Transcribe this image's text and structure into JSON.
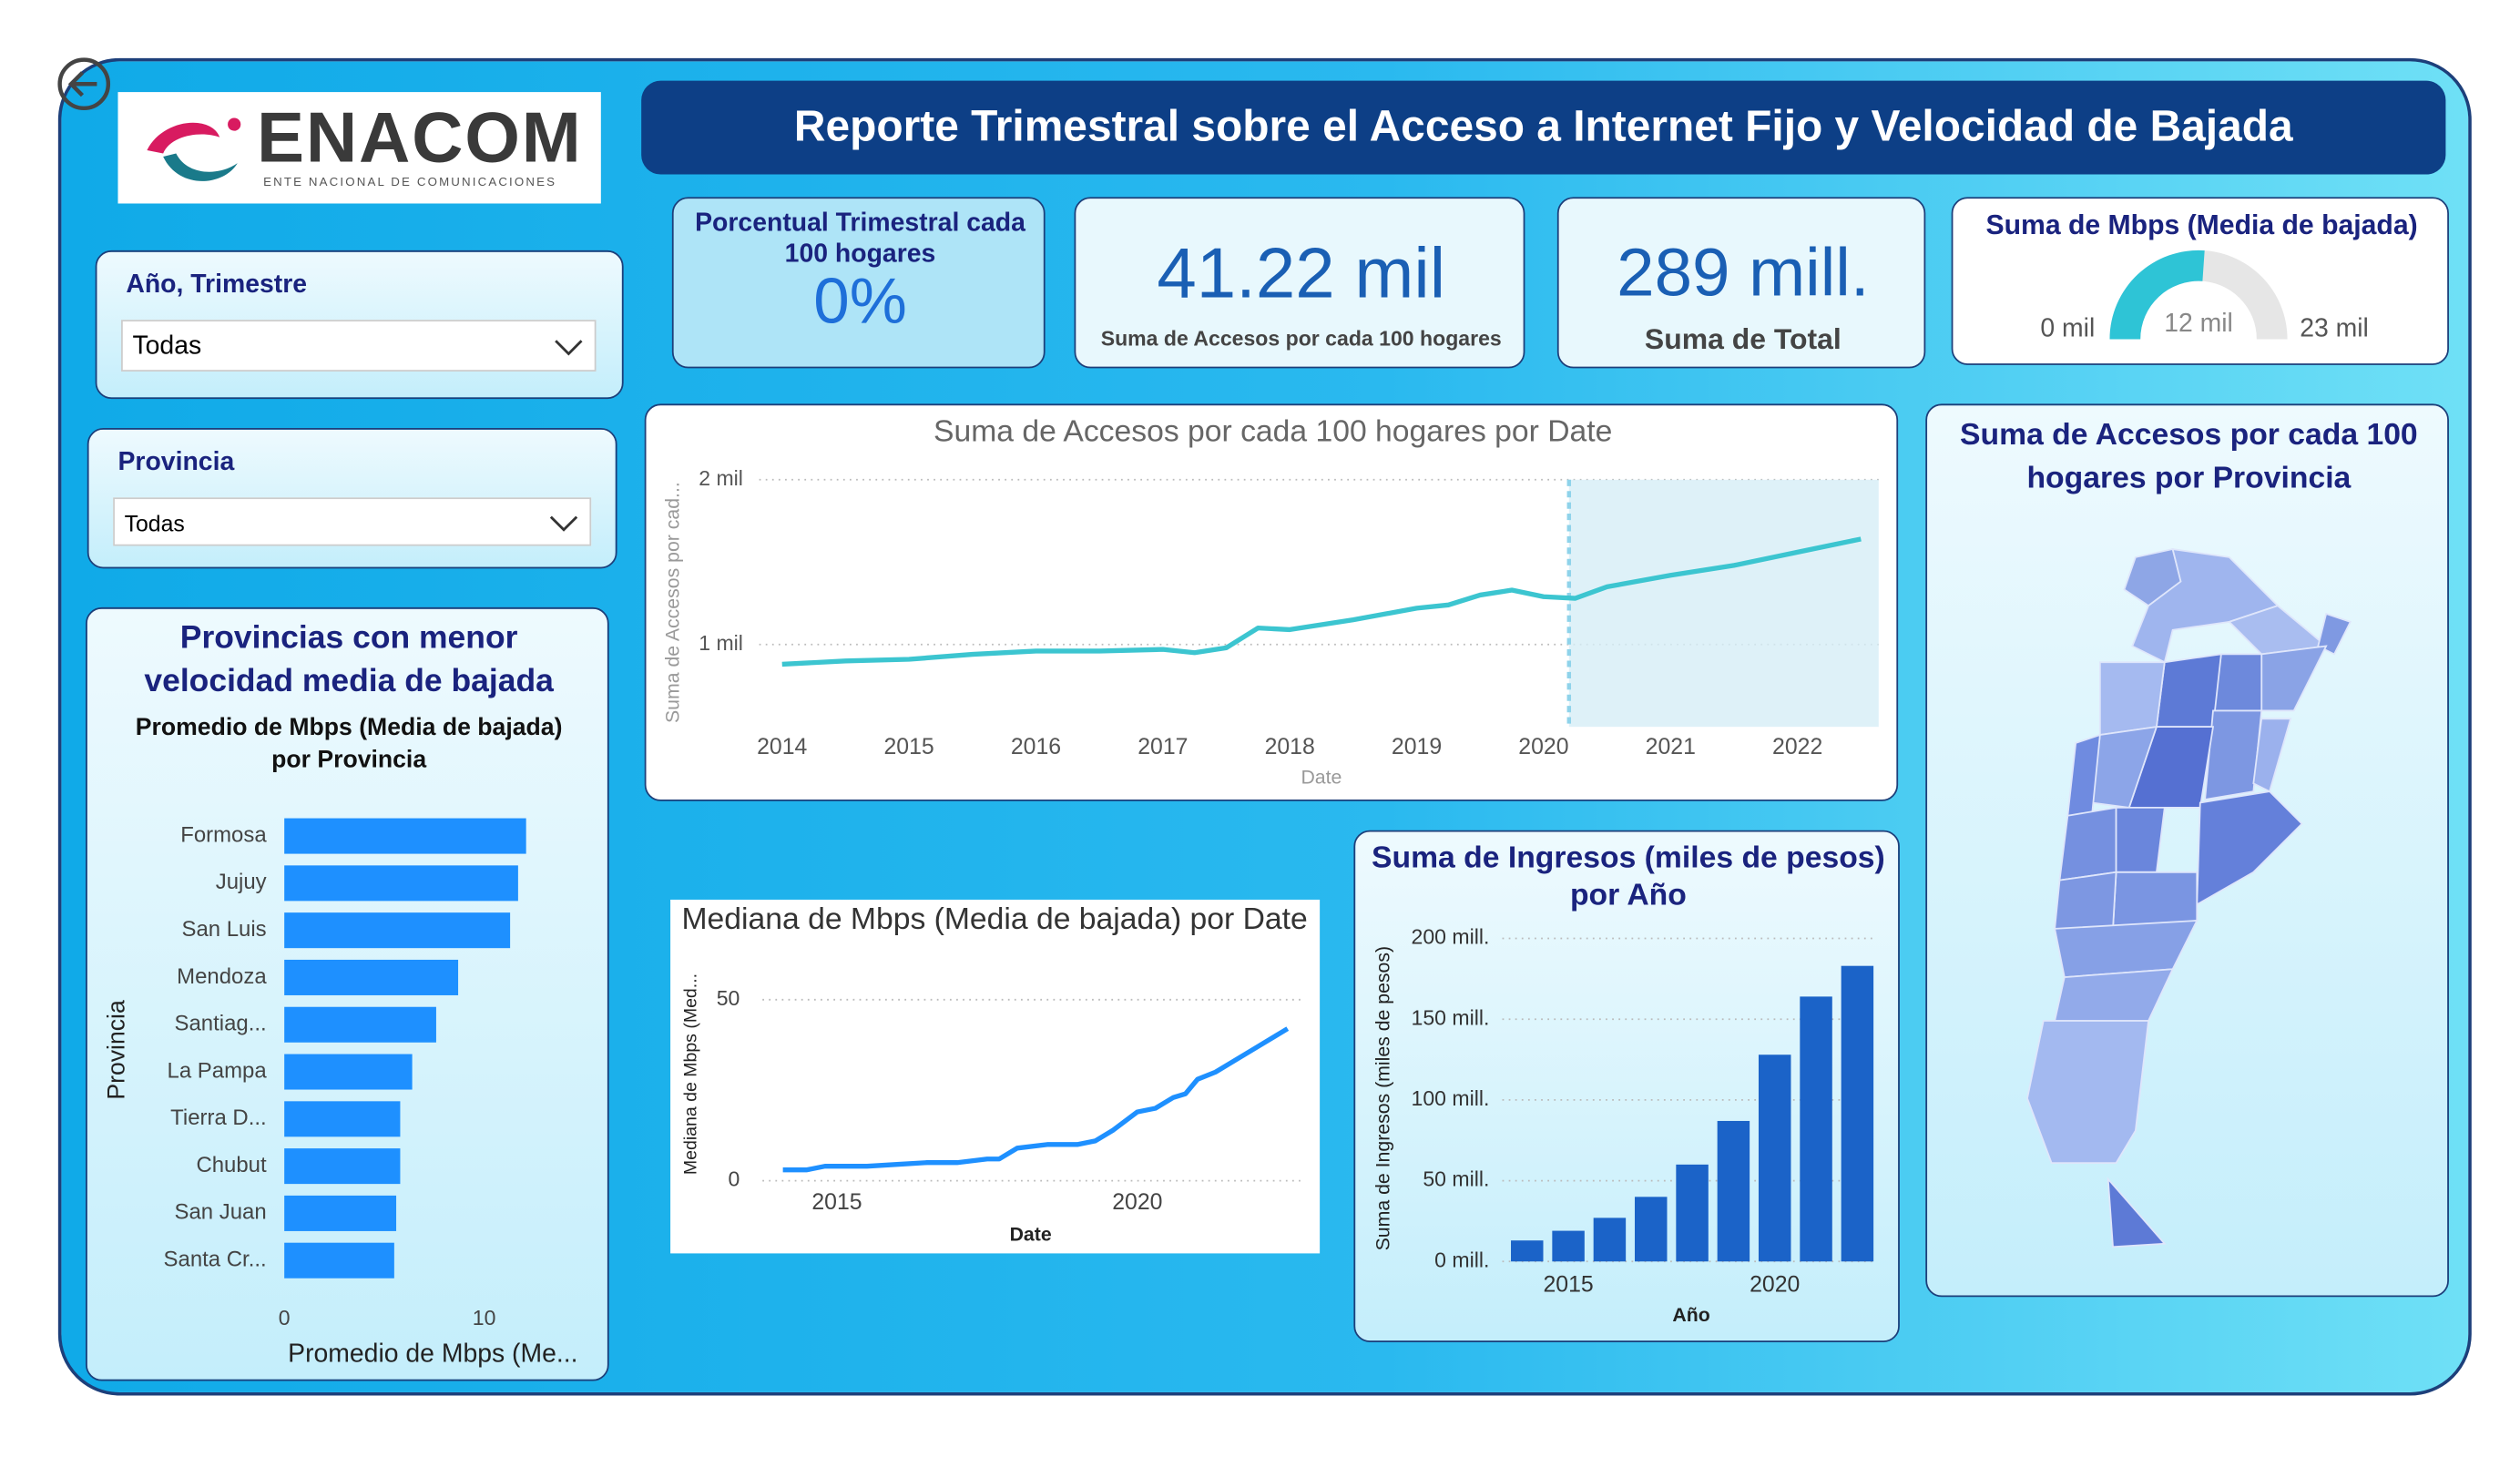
{
  "header": {
    "title": "Reporte Trimestral sobre el Acceso a Internet Fijo y Velocidad de Bajada"
  },
  "logo": {
    "name": "ENACOM",
    "tagline": "ENTE NACIONAL DE COMUNICACIONES"
  },
  "filters": [
    {
      "label": "Año, Trimestre",
      "value": "Todas"
    },
    {
      "label": "Provincia",
      "value": "Todas"
    }
  ],
  "cards": [
    {
      "title": "Porcentual Trimestral cada 100 hogares",
      "value": "0%"
    },
    {
      "value": "41.22 mil",
      "label": "Suma de Accesos por cada 100 hogares"
    },
    {
      "value": "289 mill.",
      "label": "Suma de Total"
    }
  ],
  "map": {
    "title": "Suma de Accesos por cada 100 hogares por Provincia"
  },
  "chart_data": [
    {
      "type": "hbar",
      "heading": "Provincias con menor velocidad media de bajada",
      "title": "Promedio de Mbps (Media de bajada) por Provincia",
      "categories": [
        "Formosa",
        "Jujuy",
        "San Luis",
        "Mendoza",
        "Santiag...",
        "La Pampa",
        "Tierra D...",
        "Chubut",
        "San Juan",
        "Santa Cr..."
      ],
      "values": [
        12.1,
        11.7,
        11.3,
        8.7,
        7.6,
        6.4,
        5.8,
        5.8,
        5.6,
        5.5
      ],
      "color": "#1e90ff",
      "xlim": [
        0,
        13.5
      ],
      "xticks": [
        0,
        10
      ],
      "x_label": "Promedio de Mbps (Me...",
      "y_label": "Provincia"
    },
    {
      "type": "line",
      "title": "Suma de Accesos por cada 100 hogares por Date",
      "x": [
        2014.0,
        2014.5,
        2015.0,
        2015.5,
        2016.0,
        2016.5,
        2017.0,
        2017.25,
        2017.5,
        2017.75,
        2018.0,
        2018.5,
        2019.0,
        2019.25,
        2019.5,
        2019.75,
        2020.0,
        2020.25,
        2020.5,
        2021.0,
        2021.5,
        2022.0,
        2022.25,
        2022.5
      ],
      "values": [
        880,
        900,
        910,
        940,
        960,
        960,
        970,
        950,
        980,
        1100,
        1090,
        1150,
        1220,
        1240,
        1300,
        1330,
        1290,
        1280,
        1350,
        1420,
        1480,
        1560,
        1600,
        1640
      ],
      "color": "#3cc5d0",
      "xlim": [
        2013.82,
        2022.64
      ],
      "ylim": [
        500,
        2000
      ],
      "xticks": [
        2014,
        2015,
        2016,
        2017,
        2018,
        2019,
        2020,
        2021,
        2022
      ],
      "yticks": [
        {
          "value": 1000,
          "label": "1 mil"
        },
        {
          "value": 2000,
          "label": "2 mil"
        }
      ],
      "highlight": {
        "from": 2020.2,
        "to": 2022.64
      },
      "x_label": "Date",
      "y_label": "Suma de Accesos por cad...",
      "grid": true
    },
    {
      "type": "line",
      "title": "Mediana de Mbps (Media de bajada) por Date",
      "x": [
        2014.1,
        2014.5,
        2014.8,
        2015.5,
        2016.0,
        2016.5,
        2017.0,
        2017.5,
        2017.7,
        2018.0,
        2018.5,
        2019.0,
        2019.3,
        2019.6,
        2020.0,
        2020.3,
        2020.6,
        2020.8,
        2021.0,
        2021.3,
        2021.6,
        2022.0,
        2022.3,
        2022.5
      ],
      "values": [
        3,
        3,
        4,
        4,
        4.5,
        5,
        5,
        6,
        6,
        9,
        10,
        10,
        11,
        14,
        19,
        20,
        23,
        24,
        28,
        30,
        33,
        37,
        40,
        42
      ],
      "color": "#1e90ff",
      "xlim": [
        2013.76,
        2022.74
      ],
      "ylim": [
        0,
        58
      ],
      "xticks": [
        2015,
        2020
      ],
      "yticks": [
        0,
        50
      ],
      "x_label": "Date",
      "y_label": "Mediana de Mbps (Med...",
      "grid": true
    },
    {
      "type": "bar",
      "heading": "Suma de Ingresos (miles de pesos) por Año",
      "x": [
        2014,
        2015,
        2016,
        2017,
        2018,
        2019,
        2020,
        2021,
        2022
      ],
      "values": [
        13,
        19,
        27,
        40,
        60,
        87,
        128,
        164,
        183
      ],
      "color": "#1b63c8",
      "xlim": [
        2013.4,
        2022.4
      ],
      "ylim": [
        0,
        205
      ],
      "xticks": [
        2015,
        2020
      ],
      "yticks": [
        {
          "value": 0,
          "label": "0 mill."
        },
        {
          "value": 50,
          "label": "50 mill."
        },
        {
          "value": 100,
          "label": "100 mill."
        },
        {
          "value": 150,
          "label": "150 mill."
        },
        {
          "value": 200,
          "label": "200 mill."
        }
      ],
      "x_label": "Año",
      "y_label": "Suma de Ingresos (miles de pesos)",
      "grid": true
    },
    {
      "type": "gauge",
      "title": "Suma de Mbps (Media de bajada)",
      "value": 12000,
      "value_label": "12 mil",
      "min": 0,
      "min_label": "0 mil",
      "max": 23000,
      "max_label": "23 mil",
      "color": "#2ec4d6"
    }
  ]
}
